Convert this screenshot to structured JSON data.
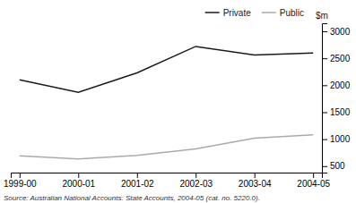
{
  "chart_data": {
    "type": "line",
    "categories": [
      "1999-00",
      "2000-01",
      "2001-02",
      "2002-03",
      "2003-04",
      "2004-05"
    ],
    "series": [
      {
        "name": "Private",
        "color": "#1a1a1a",
        "values": [
          2100,
          1870,
          2230,
          2720,
          2560,
          2600
        ]
      },
      {
        "name": "Public",
        "color": "#aaaaaa",
        "values": [
          690,
          635,
          700,
          820,
          1020,
          1080
        ]
      }
    ],
    "y_label": "$m",
    "ylim": [
      380,
      3150
    ],
    "yticks": [
      500,
      1000,
      1500,
      2000,
      2500,
      3000
    ],
    "legend": "upper right",
    "grid": false,
    "source": "Source: Australian National Accounts: State Accounts, 2004-05 (cat. no. 5220.0)."
  }
}
